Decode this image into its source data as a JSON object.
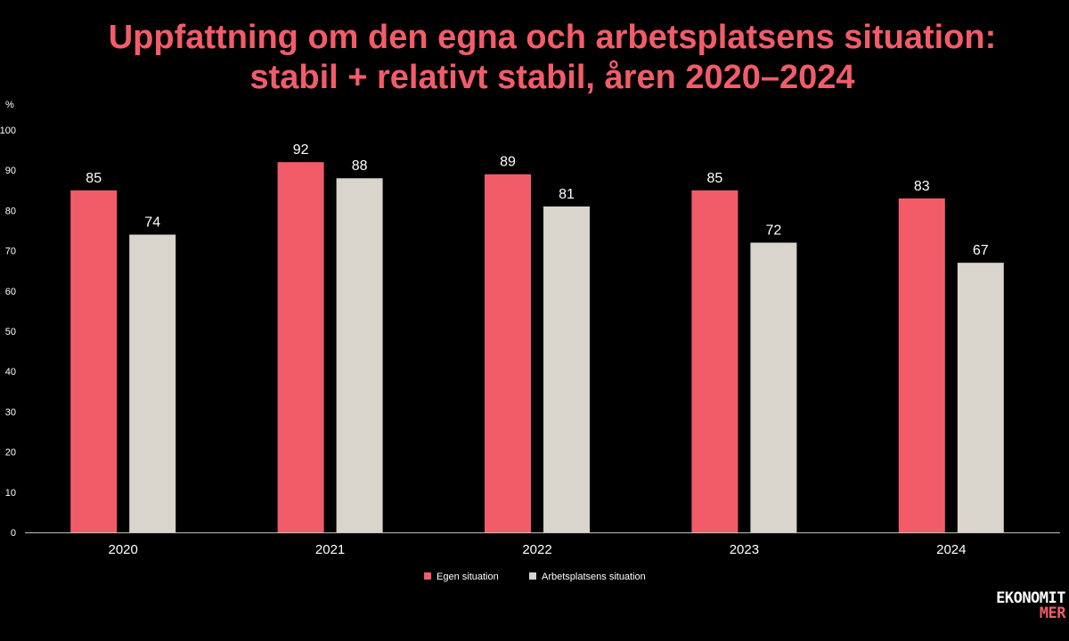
{
  "title": {
    "line1": "Uppfattning om den egna och arbetsplatsens situation:",
    "line2": "stabil + relativt stabil, åren 2020–2024"
  },
  "logo": {
    "line1": "EKONOMIT",
    "line2": "MER"
  },
  "chart_data": {
    "type": "bar",
    "title": "Uppfattning om den egna och arbetsplatsens situation: stabil + relativt stabil, åren 2020–2024",
    "ylabel": "%",
    "ylim": [
      0,
      100
    ],
    "yticks": [
      0,
      10,
      20,
      30,
      40,
      50,
      60,
      70,
      80,
      90,
      100
    ],
    "categories": [
      "2020",
      "2021",
      "2022",
      "2023",
      "2024"
    ],
    "series": [
      {
        "name": "Egen situation",
        "values": [
          85,
          92,
          89,
          85,
          83
        ],
        "color": "#f25c69"
      },
      {
        "name": "Arbetsplatsens situation",
        "values": [
          74,
          88,
          81,
          72,
          67
        ],
        "color": "#d9d4cc"
      }
    ],
    "grid": false,
    "legend": "bottom-center"
  }
}
